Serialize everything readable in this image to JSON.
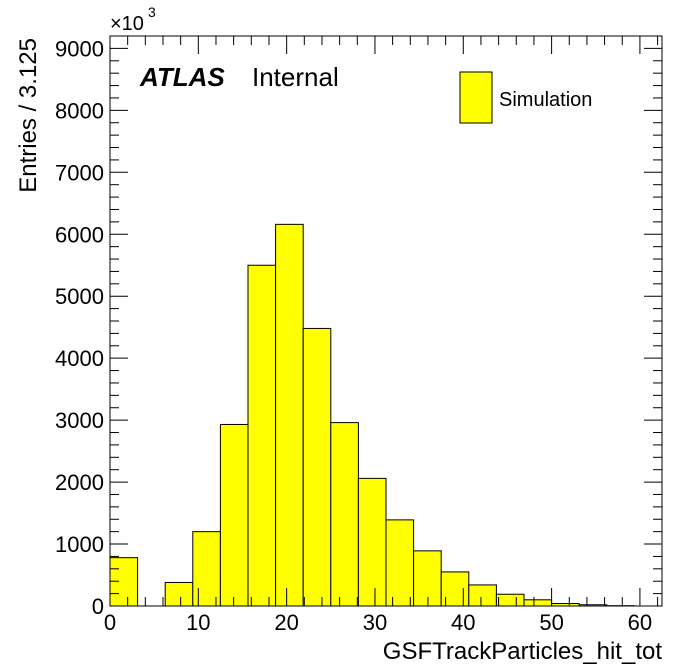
{
  "chart_data": {
    "type": "bar",
    "xlabel": "GSFTrackParticles_hit_tot",
    "ylabel": "Entries / 3.125",
    "xlim": [
      0,
      62.5
    ],
    "ylim": [
      0,
      9200
    ],
    "y_multiplier": "×10",
    "y_multiplier_exponent": "3",
    "x_ticks": [
      "0",
      "10",
      "20",
      "30",
      "40",
      "50",
      "60"
    ],
    "y_ticks": [
      "0",
      "1000",
      "2000",
      "3000",
      "4000",
      "5000",
      "6000",
      "7000",
      "8000",
      "9000"
    ],
    "grid": false,
    "legend": "top-right",
    "series": [
      {
        "name": "Simulation",
        "color": "#ffff00",
        "bin_width": 3.125,
        "bin_edges_start": [
          0,
          3.125,
          6.25,
          9.375,
          12.5,
          15.625,
          18.75,
          21.875,
          25,
          28.125,
          31.25,
          34.375,
          37.5,
          40.625,
          43.75,
          46.875,
          50,
          53.125,
          56.25,
          59.375
        ],
        "values": [
          780,
          0,
          380,
          1200,
          2930,
          5500,
          6160,
          4480,
          2960,
          2060,
          1390,
          890,
          550,
          340,
          190,
          100,
          40,
          20,
          5,
          0
        ]
      }
    ]
  },
  "labels": {
    "atlas": "ATLAS",
    "internal": "Internal"
  }
}
